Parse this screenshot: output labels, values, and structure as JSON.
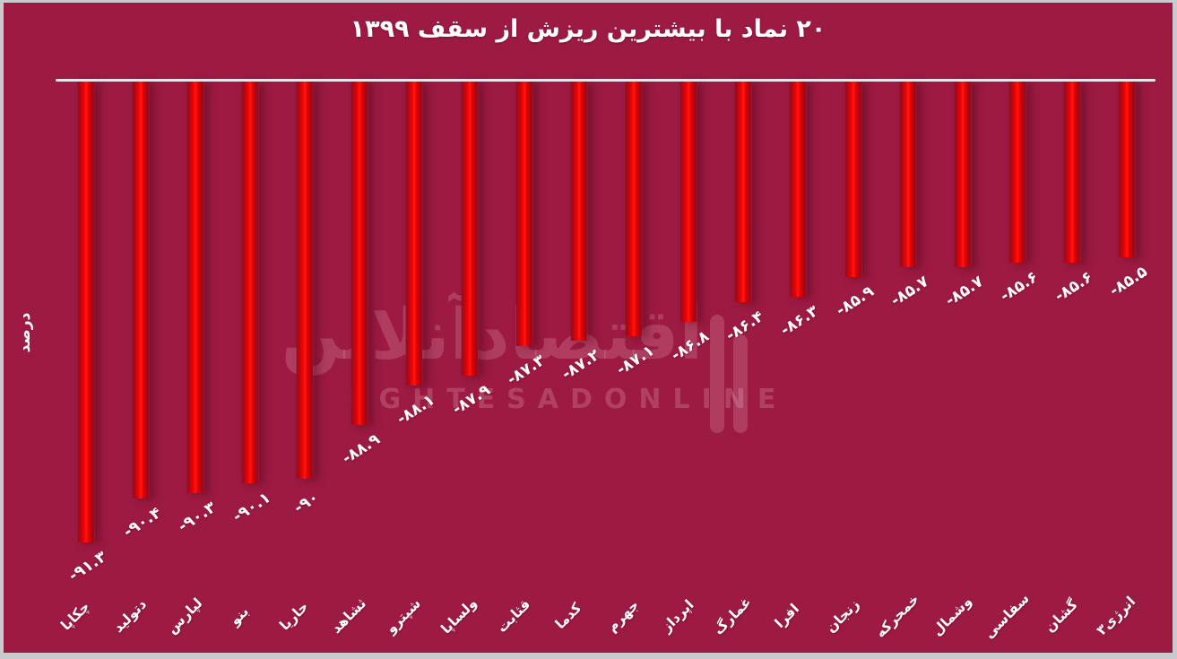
{
  "title": "۲۰ نماد با بیشترین ریزش از سقف ۱۳۹۹",
  "ylabel": "درصد",
  "watermark": {
    "fa": "اقتصادآنلاین",
    "latin": "EGHTESADONLINE"
  },
  "colors": {
    "page_frame": "#c9cacd",
    "chart_background": "#9d1a42",
    "bar_bright": "#f70303",
    "bar_dark": "#8f0e1e",
    "axis_line": "#e9e3eb",
    "text": "#ffffff",
    "watermark": "rgba(245,205,220,0.21)"
  },
  "chart_data": {
    "type": "bar",
    "title": "۲۰ نماد با بیشترین ریزش از سقف ۱۳۹۹",
    "ylabel": "درصد",
    "categories": [
      "چکاپا",
      "دتولید",
      "لپارس",
      "بنو",
      "حاریا",
      "ثشاهد",
      "شپترو",
      "ولساپا",
      "قثابت",
      "کدما",
      "جهرم",
      "اپرداز",
      "غمارگ",
      "افرا",
      "زنجان",
      "خمحرکه",
      "وشمال",
      "سفاسی",
      "گشان",
      "انرژی۳"
    ],
    "values": [
      -91.3,
      -90.4,
      -90.3,
      -90.1,
      -90,
      -88.9,
      -88.1,
      -87.9,
      -87.3,
      -87.2,
      -87.1,
      -86.8,
      -86.4,
      -86.3,
      -85.9,
      -85.7,
      -85.7,
      -85.6,
      -85.6,
      -85.5
    ],
    "value_labels": [
      "-۹۱.۳",
      "-۹۰.۴",
      "-۹۰.۳",
      "-۹۰.۱",
      "-۹۰",
      "-۸۸.۹",
      "-۸۸.۱",
      "-۸۷.۹",
      "-۸۷.۳",
      "-۸۷.۲",
      "-۸۷.۱",
      "-۸۶.۸",
      "-۸۶.۴",
      "-۸۶.۳",
      "-۸۵.۹",
      "-۸۵.۷",
      "-۸۵.۷",
      "-۸۵.۶",
      "-۸۵.۶",
      "-۸۵.۵"
    ],
    "unit": "percent",
    "bar_direction": "hanging-from-top-axis",
    "axis_top_value": -81.9,
    "ylim": [
      -92.5,
      -81.9
    ],
    "grid": false,
    "legend": false
  }
}
